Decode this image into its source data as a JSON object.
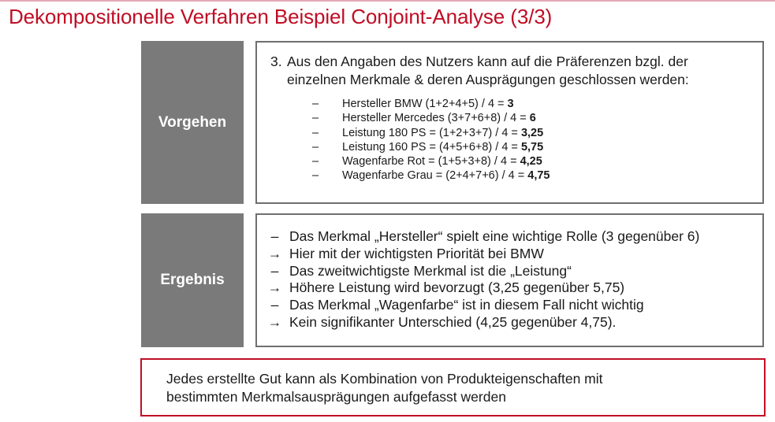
{
  "title": "Dekompositionelle Verfahren Beispiel Conjoint-Analyse (3/3)",
  "vorgehen": {
    "label": "Vorgehen",
    "intro_num": "3.",
    "intro_line1": "Aus den Angaben des Nutzers kann auf die Präferenzen bzgl. der",
    "intro_line2": "einzelnen Merkmale & deren Ausprägungen geschlossen werden:",
    "items": [
      {
        "text": "Hersteller BMW (1+2+4+5) / 4 = ",
        "value": "3"
      },
      {
        "text": "Hersteller Mercedes (3+7+6+8) / 4 = ",
        "value": "6"
      },
      {
        "text": "Leistung 180 PS = (1+2+3+7) / 4 = ",
        "value": "3,25"
      },
      {
        "text": "Leistung 160 PS = (4+5+6+8) / 4 = ",
        "value": "5,75"
      },
      {
        "text": "Wagenfarbe Rot = (1+5+3+8) / 4 = ",
        "value": "4,25"
      },
      {
        "text": "Wagenfarbe Grau = (2+4+7+6) / 4 = ",
        "value": "4,75"
      }
    ]
  },
  "ergebnis": {
    "label": "Ergebnis",
    "items": [
      {
        "symbol": "–",
        "text": "Das Merkmal „Hersteller“ spielt eine wichtige Rolle (3 gegenüber 6)"
      },
      {
        "symbol": "→",
        "text": "Hier mit der wichtigsten Priorität bei BMW"
      },
      {
        "symbol": "–",
        "text": "Das zweitwichtigste Merkmal ist die „Leistung“"
      },
      {
        "symbol": "→",
        "text": "Höhere Leistung wird bevorzugt (3,25 gegenüber 5,75)"
      },
      {
        "symbol": "–",
        "text": "Das Merkmal „Wagenfarbe“ ist in diesem Fall nicht wichtig"
      },
      {
        "symbol": "→",
        "text": "Kein signifikanter Unterschied (4,25 gegenüber 4,75)."
      }
    ]
  },
  "note": {
    "line1": "Jedes erstellte Gut kann als Kombination von Produkteigenschaften mit",
    "line2": "bestimmten Merkmalsausprägungen aufgefasst werden"
  },
  "colors": {
    "accent": "#c00d24",
    "label_bg": "#7a7a7a",
    "border": "#6f6f6f"
  }
}
